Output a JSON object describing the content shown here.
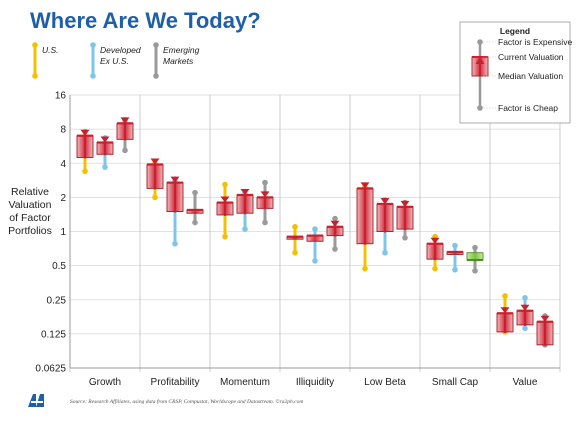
{
  "title": "Where Are We Today?",
  "ylabel_lines": [
    "Relative",
    "Valuation",
    "of Factor",
    "Portfolios"
  ],
  "source": "Source: Research Affiliates, using data from CRSP, Compustat, Worldscope and Datastream. ©ra2ph.com",
  "legend": {
    "title": "Legend",
    "expensive": "Factor is Expensive",
    "current": "Current Valuation",
    "median": "Median Valuation",
    "cheap": "Factor is Cheap"
  },
  "series_legend": [
    {
      "label_lines": [
        "U.S."
      ],
      "color": "#f4c000"
    },
    {
      "label_lines": [
        "Developed",
        "Ex U.S."
      ],
      "color": "#7fc4ea"
    },
    {
      "label_lines": [
        "Emerging",
        "Markets"
      ],
      "color": "#9a9a9a"
    }
  ],
  "colors": {
    "expensive": "#c8202f",
    "cheap": "#7cc242",
    "axis": "#333333",
    "grid": "#d9d9d9"
  },
  "chart_data": {
    "type": "range-box",
    "scale": "log2",
    "ylim": [
      0.0625,
      16
    ],
    "yticks": [
      0.0625,
      0.125,
      0.25,
      0.5,
      1,
      2,
      4,
      8,
      16
    ],
    "ytick_labels": [
      "0.0625",
      "0.125",
      "0.25",
      "0.5",
      "1",
      "2",
      "4",
      "8",
      "16"
    ],
    "categories": [
      "Growth",
      "Profitability",
      "Momentum",
      "Illiquidity",
      "Low Beta",
      "Small Cap",
      "Value"
    ],
    "series": [
      {
        "name": "U.S.",
        "color": "#f4c000",
        "values": [
          {
            "min": 3.4,
            "max": 7.6,
            "median": 4.5,
            "current": 7.0
          },
          {
            "min": 2.0,
            "max": 4.0,
            "median": 2.4,
            "current": 3.9
          },
          {
            "min": 0.9,
            "max": 2.6,
            "median": 1.4,
            "current": 1.8
          },
          {
            "min": 0.65,
            "max": 1.1,
            "median": 0.88,
            "current": 0.9
          },
          {
            "min": 0.47,
            "max": 2.5,
            "median": 0.78,
            "current": 2.4
          },
          {
            "min": 0.47,
            "max": 0.9,
            "median": 0.57,
            "current": 0.78
          },
          {
            "min": 0.13,
            "max": 0.27,
            "median": 0.13,
            "current": 0.19
          }
        ]
      },
      {
        "name": "Developed Ex U.S.",
        "color": "#7fc4ea",
        "values": [
          {
            "min": 3.7,
            "max": 6.7,
            "median": 4.8,
            "current": 6.1
          },
          {
            "min": 0.78,
            "max": 2.8,
            "median": 1.5,
            "current": 2.7
          },
          {
            "min": 1.05,
            "max": 2.2,
            "median": 1.45,
            "current": 2.1
          },
          {
            "min": 0.55,
            "max": 1.05,
            "median": 0.82,
            "current": 0.92
          },
          {
            "min": 0.65,
            "max": 1.9,
            "median": 1.0,
            "current": 1.75
          },
          {
            "min": 0.46,
            "max": 0.75,
            "median": 0.66,
            "current": 0.66
          },
          {
            "min": 0.14,
            "max": 0.26,
            "median": 0.15,
            "current": 0.2
          }
        ]
      },
      {
        "name": "Emerging Markets",
        "color": "#9a9a9a",
        "values": [
          {
            "min": 5.2,
            "max": 9.6,
            "median": 6.5,
            "current": 9.0
          },
          {
            "min": 1.2,
            "max": 2.2,
            "median": 1.45,
            "current": 1.55
          },
          {
            "min": 1.2,
            "max": 2.7,
            "median": 1.6,
            "current": 2.0
          },
          {
            "min": 0.7,
            "max": 1.3,
            "median": 0.92,
            "current": 1.1
          },
          {
            "min": 0.88,
            "max": 1.8,
            "median": 1.05,
            "current": 1.65
          },
          {
            "min": 0.45,
            "max": 0.72,
            "median": 0.65,
            "current": 0.56
          },
          {
            "min": 0.1,
            "max": 0.18,
            "median": 0.1,
            "current": 0.16
          }
        ]
      }
    ]
  }
}
